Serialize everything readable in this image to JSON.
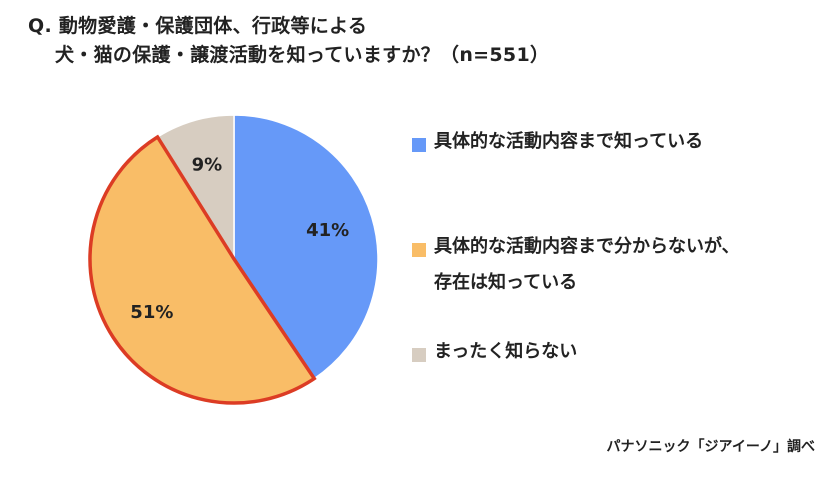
{
  "title_line1": "Q. 動物愛護・保護団体、行政等による",
  "title_line2": "犬・猫の保護・譲渡活動を知っていますか？（n=551）",
  "source": "パナソニック「ジアイーノ」調べ",
  "chart_data": {
    "type": "pie",
    "n": 551,
    "slices": [
      {
        "label": "具体的な活動内容まで知っている",
        "value": 41,
        "display": "41%",
        "color": "#6699f8"
      },
      {
        "label": "具体的な活動内容まで分からないが、\n存在は知っている",
        "value": 51,
        "display": "51%",
        "color": "#f9bd67",
        "highlight": true,
        "highlight_color": "#dc3c24"
      },
      {
        "label": "まったく知らない",
        "value": 9,
        "display": "9%",
        "color": "#d7cdc1"
      }
    ],
    "start": "12 o'clock",
    "direction": "clockwise",
    "legend_position": "right",
    "highlight_color": "#dc3c24"
  }
}
